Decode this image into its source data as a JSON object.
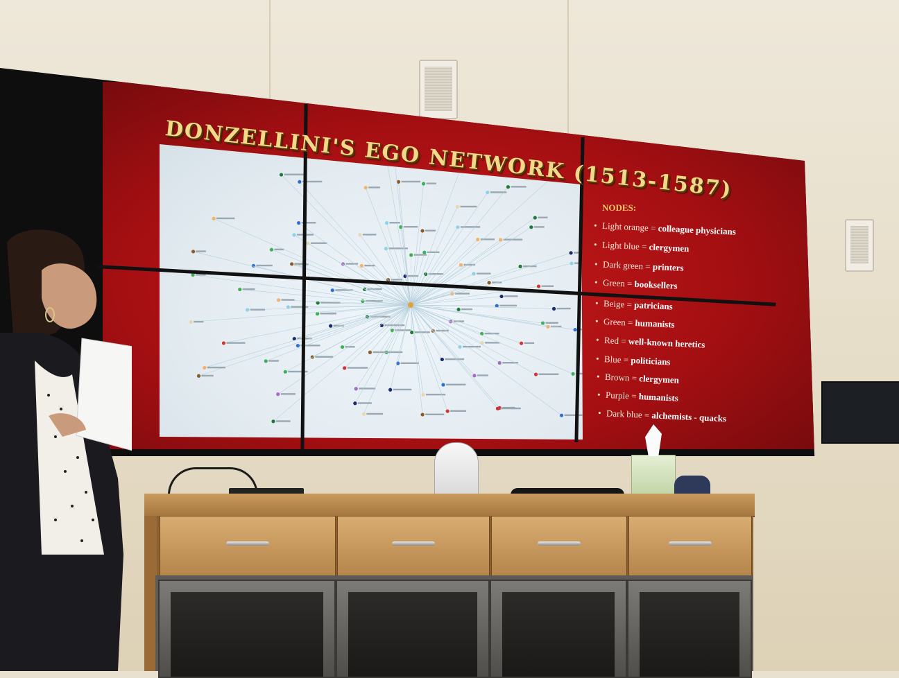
{
  "slide": {
    "title": "DONZELLINI'S EGO NETWORK (1513-1587)",
    "legend_heading": "NODES:",
    "legend": [
      {
        "color_name": "Light orange",
        "sep": " = ",
        "category": "colleague physicians",
        "color": "#f3b26b"
      },
      {
        "color_name": "Light blue",
        "sep": " = ",
        "category": "clergymen",
        "color": "#8fd3ea"
      },
      {
        "color_name": "Dark green",
        "sep": " = ",
        "category": "printers",
        "color": "#1f7a3a"
      },
      {
        "color_name": "Green",
        "sep": " = ",
        "category": "booksellers",
        "color": "#3bb35a"
      },
      {
        "color_name": "Beige",
        "sep": " = ",
        "category": "patricians",
        "color": "#e8d7b0"
      },
      {
        "color_name": "Green",
        "sep": " = ",
        "category": "humanists",
        "color": "#42b04e"
      },
      {
        "color_name": "Red",
        "sep": " = ",
        "category": "well-known heretics",
        "color": "#d63030"
      },
      {
        "color_name": "Blue",
        "sep": " = ",
        "category": "politicians",
        "color": "#2f6fd0"
      },
      {
        "color_name": "Brown",
        "sep": " = ",
        "category": "clergymen",
        "color": "#8a5a2b"
      },
      {
        "color_name": "Purple",
        "sep": " = ",
        "category": "humanists",
        "color": "#a46cc9"
      },
      {
        "color_name": "Dark blue",
        "sep": " = ",
        "category": "alchemists - quacks",
        "color": "#1b2a6b"
      }
    ]
  },
  "colors": {
    "slide_red": "#b3131a",
    "title_gold": "#f2d98a",
    "network_bg": "#e8f1f6",
    "ego_node": "#e0a23a"
  },
  "icons": {
    "legend_bullet": "bullet"
  }
}
